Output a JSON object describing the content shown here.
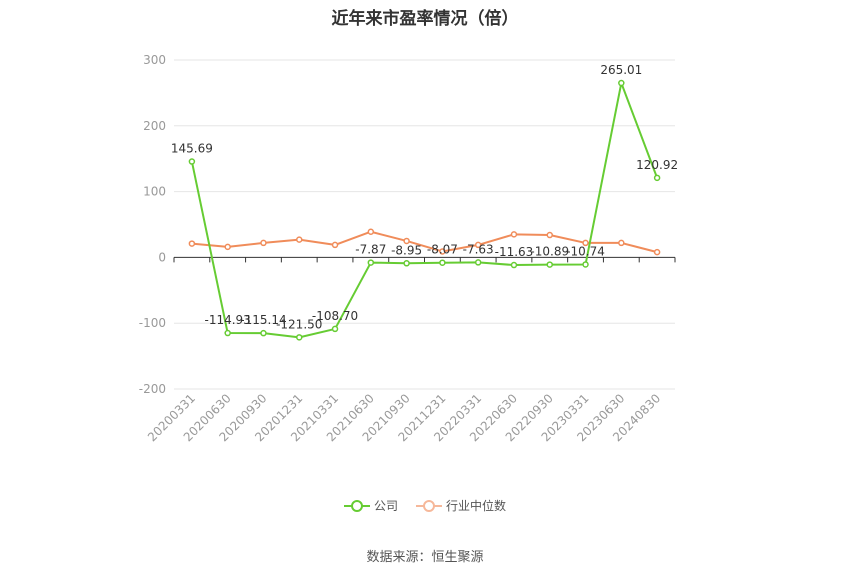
{
  "chart_data": {
    "type": "line",
    "title": "近年来市盈率情况（倍）",
    "categories": [
      "20200331",
      "20200630",
      "20200930",
      "20201231",
      "20210331",
      "20210630",
      "20210930",
      "20211231",
      "20220331",
      "20220630",
      "20220930",
      "20230331",
      "20230630",
      "20240830"
    ],
    "ylim": [
      -200,
      300
    ],
    "yticks": [
      -200,
      -100,
      0,
      100,
      200,
      300
    ],
    "grid": true,
    "legend_position": "bottom-center",
    "series": [
      {
        "name": "公司",
        "color": "#66cc33",
        "values": [
          145.69,
          -114.93,
          -115.14,
          -121.5,
          -108.7,
          -7.87,
          -8.95,
          -8.07,
          -7.63,
          -11.63,
          -10.89,
          -10.74,
          265.01,
          120.92
        ],
        "labels": [
          "145.69",
          "-114.93",
          "-115.14",
          "-121.50",
          "-108.70",
          "-7.87",
          "-8.95",
          "-8.07",
          "-7.63",
          "-11.63",
          "-10.89",
          "-10.74",
          "265.01",
          "120.92"
        ]
      },
      {
        "name": "行业中位数",
        "color": "#f08c5a",
        "values": [
          21,
          16,
          22,
          27,
          19,
          39,
          25,
          9,
          19,
          35,
          34,
          22,
          22,
          8
        ]
      }
    ]
  },
  "source_text": "数据来源：恒生聚源"
}
